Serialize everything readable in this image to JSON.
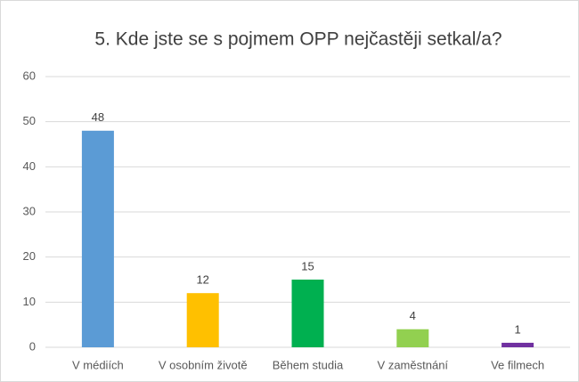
{
  "chart_data": {
    "type": "bar",
    "title": "5. Kde jste se s pojmem OPP nejčastěji setkal/a?",
    "categories": [
      "V médiích",
      "V osobním životě",
      "Během studia",
      "V zaměstnání",
      "Ve filmech"
    ],
    "values": [
      48,
      12,
      15,
      4,
      1
    ],
    "colors": [
      "#5b9bd5",
      "#ffc000",
      "#00b050",
      "#92d050",
      "#7030a0"
    ],
    "ylim": [
      0,
      60
    ],
    "yticks": [
      0,
      10,
      20,
      30,
      40,
      50,
      60
    ],
    "grid": true
  }
}
